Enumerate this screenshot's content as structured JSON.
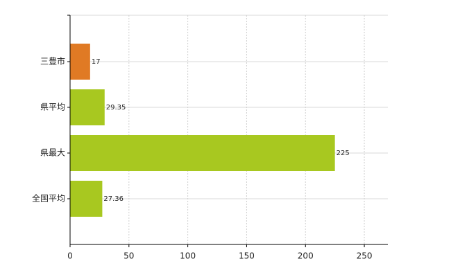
{
  "chart_data": {
    "type": "barh",
    "categories": [
      "三豊市",
      "県平均",
      "県最大",
      "全国平均"
    ],
    "values": [
      17,
      29.35,
      225,
      27.36
    ],
    "colors": [
      "#e07a24",
      "#a8c820",
      "#a8c820",
      "#a8c820"
    ],
    "xlim": [
      0,
      270
    ],
    "xticks": [
      0,
      50,
      100,
      150,
      200,
      250
    ],
    "grid": true
  }
}
